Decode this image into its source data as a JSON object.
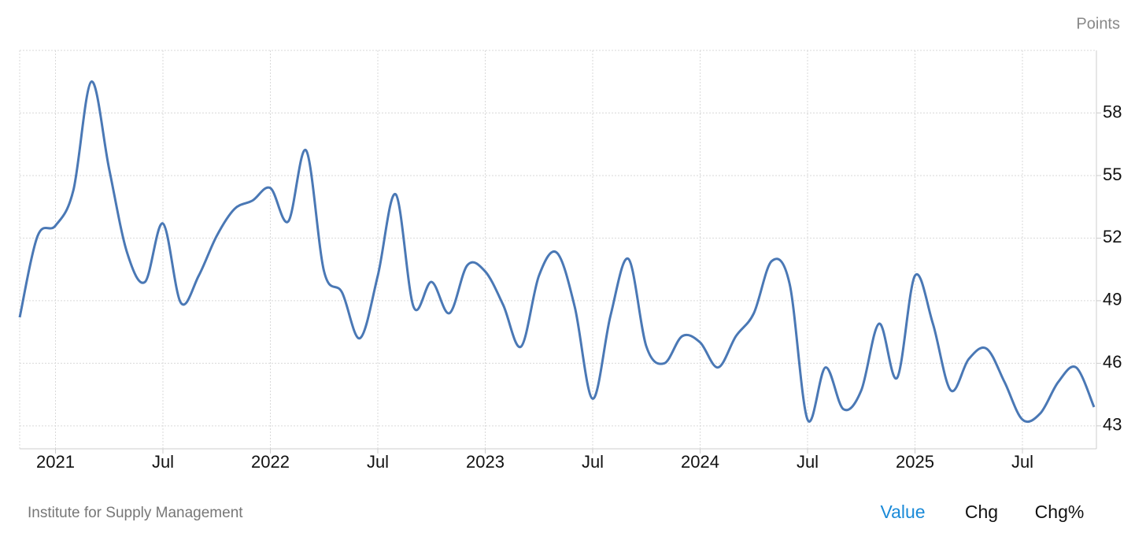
{
  "chart_data": {
    "type": "line",
    "y_axis_label": "Points",
    "source": "Institute for Supply Management",
    "tabs": [
      "Value",
      "Chg",
      "Chg%"
    ],
    "active_tab": 0,
    "categories": [
      null,
      null,
      "2021",
      null,
      null,
      null,
      null,
      null,
      "Jul",
      null,
      null,
      null,
      null,
      null,
      "2022",
      null,
      null,
      null,
      null,
      null,
      "Jul",
      null,
      null,
      null,
      null,
      null,
      "2023",
      null,
      null,
      null,
      null,
      null,
      "Jul",
      null,
      null,
      null,
      null,
      null,
      "2024",
      null,
      null,
      null,
      null,
      null,
      "Jul",
      null,
      null,
      null,
      null,
      null,
      "2025",
      null,
      null,
      null,
      null,
      null,
      "Jul",
      null,
      null,
      null,
      null
    ],
    "series": [
      {
        "color": "#4a78b5",
        "values": [
          48.2,
          52.1,
          52.6,
          54.3,
          59.5,
          55.3,
          51.3,
          49.9,
          52.7,
          48.9,
          50.2,
          52.1,
          53.4,
          53.8,
          54.4,
          52.8,
          56.2,
          50.4,
          49.4,
          47.2,
          50.2,
          54.1,
          48.7,
          49.9,
          48.4,
          50.7,
          50.4,
          48.8,
          46.8,
          50.2,
          51.3,
          48.7,
          44.3,
          48.3,
          51.0,
          46.8,
          46.0,
          47.3,
          47.0,
          45.8,
          47.3,
          48.4,
          50.9,
          49.8,
          43.3,
          45.8,
          43.8,
          44.7,
          47.9,
          45.3,
          50.2,
          47.9,
          44.7,
          46.2,
          46.7,
          45.1,
          43.3,
          43.6,
          45.1,
          45.8,
          43.9
        ]
      }
    ],
    "ylim": [
      41.9,
      61
    ],
    "yticks": [
      43,
      46,
      49,
      52,
      55,
      58
    ],
    "grid": true
  }
}
